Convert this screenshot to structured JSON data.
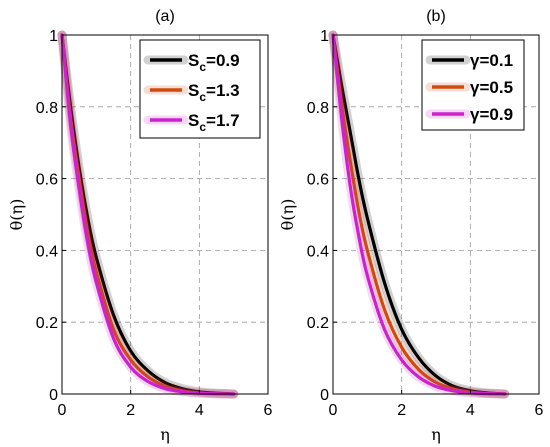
{
  "chart_data": [
    {
      "type": "line",
      "panel_label": "(a)",
      "xlabel": "η",
      "ylabel": "θ(η)",
      "xlim": [
        0,
        6
      ],
      "ylim": [
        0,
        1
      ],
      "xticks": [
        "0",
        "2",
        "4",
        "6"
      ],
      "yticks": [
        "0",
        "0.2",
        "0.4",
        "0.6",
        "0.8",
        "1"
      ],
      "grid": true,
      "legend_position": "top-right",
      "legend_symbol": "S",
      "legend_subscript": "c",
      "series": [
        {
          "name": "=0.9",
          "color": "#000000",
          "x": [
            0,
            0.25,
            0.5,
            0.75,
            1,
            1.5,
            2,
            2.5,
            3,
            3.5,
            4,
            4.5,
            5
          ],
          "y": [
            1,
            0.8,
            0.63,
            0.49,
            0.38,
            0.22,
            0.12,
            0.065,
            0.032,
            0.015,
            0.006,
            0.002,
            0.0
          ]
        },
        {
          "name": "=1.3",
          "color": "#d04a10",
          "x": [
            0,
            0.25,
            0.5,
            0.75,
            1,
            1.5,
            2,
            2.5,
            3,
            3.5,
            4,
            4.5,
            5
          ],
          "y": [
            1,
            0.77,
            0.6,
            0.45,
            0.34,
            0.18,
            0.095,
            0.048,
            0.022,
            0.009,
            0.003,
            0.001,
            0.0
          ]
        },
        {
          "name": "=1.7",
          "color": "#cc22cc",
          "x": [
            0,
            0.25,
            0.5,
            0.75,
            1,
            1.5,
            2,
            2.5,
            3,
            3.5,
            4,
            4.5,
            5
          ],
          "y": [
            1,
            0.75,
            0.57,
            0.42,
            0.31,
            0.155,
            0.075,
            0.035,
            0.015,
            0.006,
            0.002,
            0.0005,
            0.0
          ]
        }
      ]
    },
    {
      "type": "line",
      "panel_label": "(b)",
      "xlabel": "η",
      "ylabel": "θ(η)",
      "xlim": [
        0,
        6
      ],
      "ylim": [
        0,
        1
      ],
      "xticks": [
        "0",
        "2",
        "4",
        "6"
      ],
      "yticks": [
        "0",
        "0.2",
        "0.4",
        "0.6",
        "0.8",
        "1"
      ],
      "grid": true,
      "legend_position": "top-right",
      "legend_symbol": "γ",
      "legend_subscript": "",
      "series": [
        {
          "name": "=0.1",
          "color": "#000000",
          "x": [
            0,
            0.25,
            0.5,
            0.75,
            1,
            1.5,
            2,
            2.5,
            3,
            3.5,
            4,
            4.5,
            5
          ],
          "y": [
            1,
            0.86,
            0.73,
            0.6,
            0.49,
            0.31,
            0.18,
            0.1,
            0.05,
            0.022,
            0.009,
            0.003,
            0.0
          ]
        },
        {
          "name": "=0.5",
          "color": "#d04a10",
          "x": [
            0,
            0.25,
            0.5,
            0.75,
            1,
            1.5,
            2,
            2.5,
            3,
            3.5,
            4,
            4.5,
            5
          ],
          "y": [
            1,
            0.81,
            0.65,
            0.51,
            0.4,
            0.235,
            0.13,
            0.068,
            0.032,
            0.014,
            0.005,
            0.0015,
            0.0
          ]
        },
        {
          "name": "=0.9",
          "color": "#cc22cc",
          "x": [
            0,
            0.25,
            0.5,
            0.75,
            1,
            1.5,
            2,
            2.5,
            3,
            3.5,
            4,
            4.5,
            5
          ],
          "y": [
            1,
            0.77,
            0.58,
            0.44,
            0.33,
            0.18,
            0.095,
            0.047,
            0.021,
            0.009,
            0.003,
            0.001,
            0.0
          ]
        }
      ]
    }
  ]
}
